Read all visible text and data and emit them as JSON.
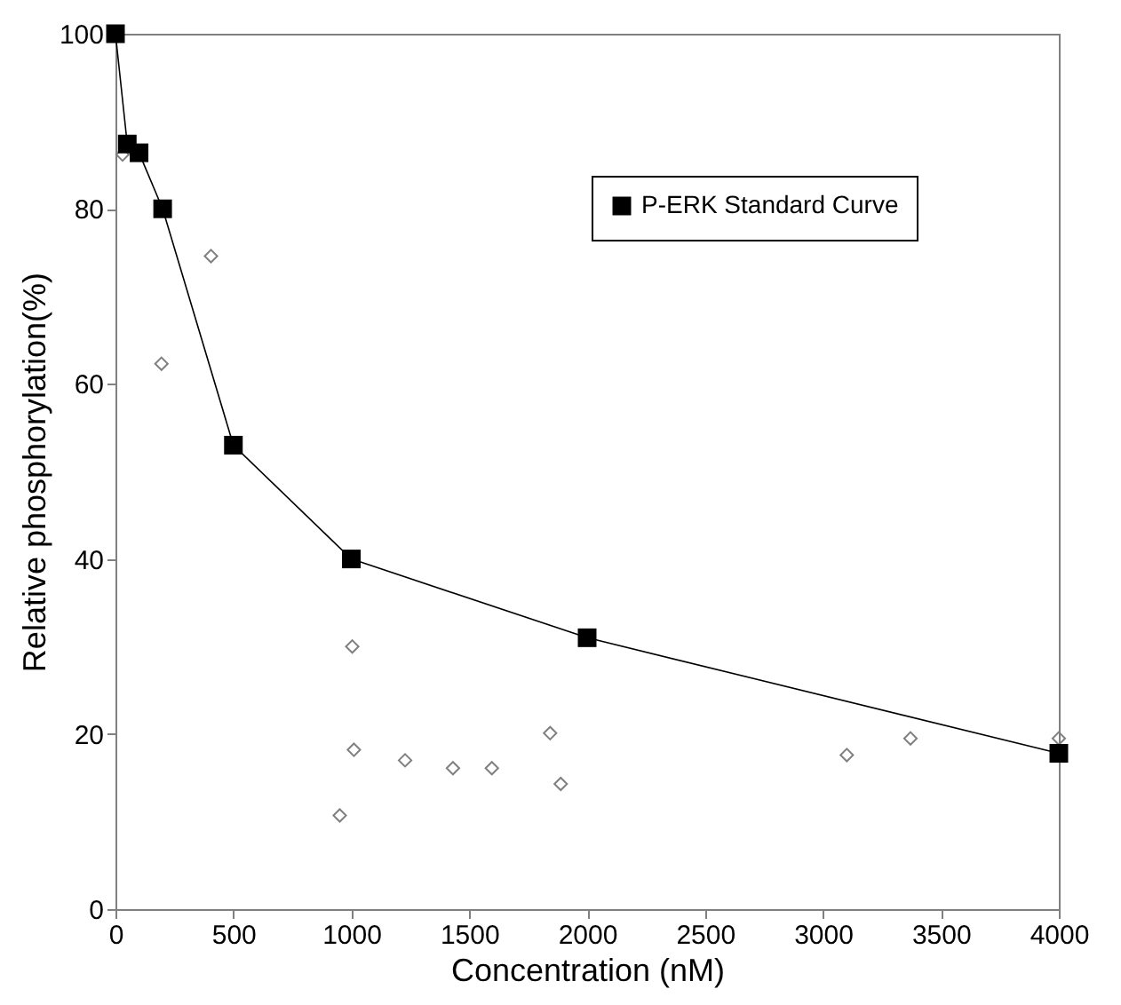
{
  "chart_data": {
    "type": "line",
    "xlabel": "Concentration (nM)",
    "ylabel": "Relative phosphorylation(%)",
    "xlim": [
      0,
      4000
    ],
    "xticks": [
      0,
      500,
      1000,
      1500,
      2000,
      2500,
      3000,
      3500,
      4000
    ],
    "ylim": [
      0,
      100
    ],
    "yticks": [
      0,
      20,
      40,
      60,
      80,
      100
    ],
    "grid": false,
    "legend": "top right",
    "series": [
      {
        "name": "P-ERK Standard Curve",
        "marker": "square",
        "color": "#000000",
        "x": [
          0,
          50,
          100,
          200,
          500,
          1000,
          2000,
          4000
        ],
        "values": [
          100,
          87.4,
          86.4,
          80,
          53,
          40,
          31,
          17.8
        ]
      },
      {
        "type": "scatter",
        "marker": "diamond",
        "color": "#808080",
        "x": [
          30,
          195,
          405,
          951,
          1004,
          1011,
          1228,
          1431,
          1596,
          1843,
          1888,
          3101,
          3371,
          4000
        ],
        "values": [
          86.2,
          62.3,
          74.6,
          10.7,
          30,
          18.2,
          17,
          16.1,
          16.1,
          20.1,
          14.3,
          17.6,
          19.5,
          19.5
        ]
      }
    ]
  }
}
